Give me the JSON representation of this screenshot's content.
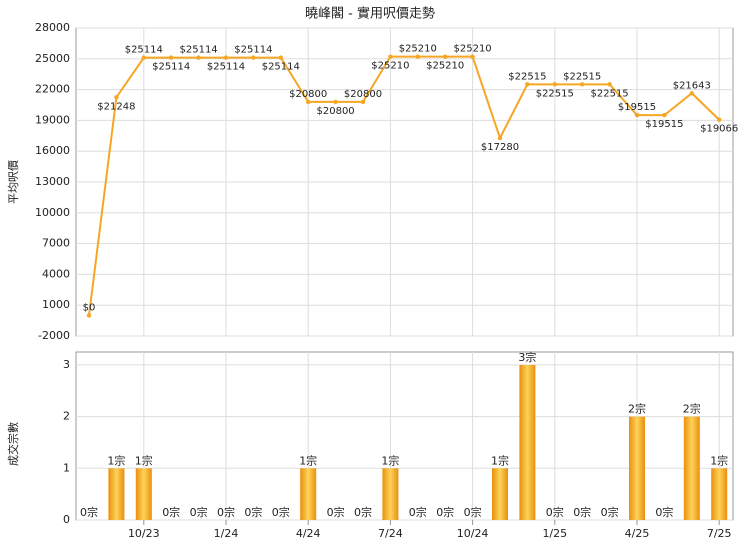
{
  "chart_data": [
    {
      "type": "line",
      "title": "曉峰閣 - 實用呎價走勢",
      "y_label": "平均呎價",
      "color": "#f5a623",
      "values": [
        0,
        21248,
        25114,
        25114,
        25114,
        25114,
        25114,
        25114,
        20800,
        20800,
        20800,
        25210,
        25210,
        25210,
        25210,
        17280,
        22515,
        22515,
        22515,
        22515,
        19515,
        19515,
        21643,
        19066
      ],
      "value_labels": [
        "$0",
        "$21248",
        "$25114",
        "$25114",
        "$25114",
        "$25114",
        "$25114",
        "$25114",
        "$20800",
        "$20800",
        "$20800",
        "$25210",
        "$25210",
        "$25210",
        "$25210",
        "$17280",
        "$22515",
        "$22515",
        "$22515",
        "$22515",
        "$19515",
        "$19515",
        "$21643",
        "$19066"
      ],
      "ylim": [
        -2000,
        28000
      ],
      "yticks": [
        -2000,
        1000,
        4000,
        7000,
        10000,
        13000,
        16000,
        19000,
        22000,
        25000,
        28000
      ],
      "grid": true
    },
    {
      "type": "bar",
      "y_label": "成交宗數",
      "color": "#f5a623",
      "categories": [
        null,
        null,
        "10/23",
        null,
        null,
        "1/24",
        null,
        null,
        "4/24",
        null,
        null,
        "7/24",
        null,
        null,
        "10/24",
        null,
        null,
        "1/25",
        null,
        null,
        "4/25",
        null,
        null,
        "7/25"
      ],
      "values": [
        0,
        1,
        1,
        0,
        0,
        0,
        0,
        0,
        1,
        0,
        0,
        1,
        0,
        0,
        0,
        1,
        3,
        0,
        0,
        0,
        2,
        0,
        2,
        1
      ],
      "value_labels": [
        "0宗",
        "1宗",
        "1宗",
        "0宗",
        "0宗",
        "0宗",
        "0宗",
        "0宗",
        "1宗",
        "0宗",
        "0宗",
        "1宗",
        "0宗",
        "0宗",
        "0宗",
        "1宗",
        "3宗",
        "0宗",
        "0宗",
        "0宗",
        "2宗",
        "0宗",
        "2宗",
        "1宗"
      ],
      "ylim": [
        0,
        3.25
      ],
      "yticks": [
        0,
        1,
        2,
        3
      ],
      "grid": true
    }
  ]
}
